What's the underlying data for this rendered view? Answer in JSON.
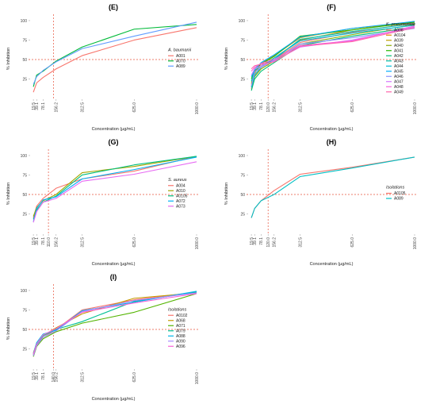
{
  "chart_data": [
    {
      "type": "line",
      "title": "(E)",
      "xlabel": "Concentration (µg/mL)",
      "ylabel": "% Inhibition",
      "legend_title": "A. baumanii",
      "legend": "right",
      "x": [
        19.5,
        39.1,
        78.1,
        156.2,
        312.5,
        625,
        1000
      ],
      "xlim": [
        0,
        1000
      ],
      "ylim": [
        0,
        102
      ],
      "xticks": [
        19.5,
        39.1,
        78.1,
        156.2,
        312.5,
        {
          "value": 625,
          "label": "625.0"
        },
        {
          "value": 1000,
          "label": "1000.0"
        }
      ],
      "yticks": [
        25,
        50,
        75,
        100
      ],
      "vline": 140,
      "hline": 50,
      "series": [
        {
          "name": "A001",
          "color": "#F8766D",
          "values": [
            8,
            20,
            27,
            38,
            55,
            75,
            91
          ]
        },
        {
          "name": "A070",
          "color": "#00BA38",
          "values": [
            15,
            30,
            35,
            48,
            66,
            89,
            95
          ]
        },
        {
          "name": "A089",
          "color": "#619CFF",
          "values": [
            18,
            28,
            36,
            47,
            64,
            80,
            98
          ]
        }
      ]
    },
    {
      "type": "line",
      "title": "(F)",
      "xlabel": "Concentration (µg/mL)",
      "ylabel": "% Inhibition",
      "legend_title": "K. pneumoniae",
      "legend": "right",
      "x": [
        19.5,
        39.1,
        78.1,
        156.2,
        312.5,
        625,
        1000
      ],
      "xlim": [
        0,
        1000
      ],
      "ylim": [
        0,
        102
      ],
      "xticks": [
        19.5,
        39.1,
        78.1,
        {
          "value": 120,
          "label": "120.0"
        },
        156.2,
        312.5,
        {
          "value": 625,
          "label": "625.0"
        },
        {
          "value": 1000,
          "label": "1000.0"
        }
      ],
      "yticks": [
        25,
        50,
        75,
        100
      ],
      "vline": 120,
      "hline": 50,
      "series": [
        {
          "name": "A008",
          "color": "#F8766D",
          "values": [
            12,
            30,
            40,
            50,
            72,
            85,
            97
          ]
        },
        {
          "name": "A0104",
          "color": "#E18A00",
          "values": [
            18,
            35,
            42,
            52,
            75,
            88,
            99
          ]
        },
        {
          "name": "A039",
          "color": "#BE9C00",
          "values": [
            20,
            32,
            45,
            55,
            78,
            90,
            98
          ]
        },
        {
          "name": "A040",
          "color": "#8CAB00",
          "values": [
            15,
            28,
            38,
            48,
            70,
            82,
            95
          ]
        },
        {
          "name": "A041",
          "color": "#24B700",
          "values": [
            25,
            38,
            44,
            54,
            80,
            88,
            98
          ]
        },
        {
          "name": "A042",
          "color": "#00BE70",
          "values": [
            10,
            25,
            35,
            46,
            68,
            80,
            92
          ]
        },
        {
          "name": "A043",
          "color": "#00C1AB",
          "values": [
            22,
            36,
            42,
            50,
            76,
            86,
            96
          ]
        },
        {
          "name": "A044",
          "color": "#00BBDA",
          "values": [
            14,
            30,
            40,
            52,
            74,
            84,
            94
          ]
        },
        {
          "name": "A045",
          "color": "#00ACFC",
          "values": [
            28,
            37,
            46,
            56,
            79,
            90,
            99
          ]
        },
        {
          "name": "A046",
          "color": "#8B93FF",
          "values": [
            16,
            34,
            40,
            49,
            70,
            78,
            90
          ]
        },
        {
          "name": "A047",
          "color": "#D575FE",
          "values": [
            30,
            38,
            42,
            48,
            66,
            75,
            92
          ]
        },
        {
          "name": "A048",
          "color": "#F962DD",
          "values": [
            35,
            40,
            45,
            50,
            68,
            74,
            93
          ]
        },
        {
          "name": "A049",
          "color": "#FF65AC",
          "values": [
            38,
            42,
            44,
            47,
            67,
            73,
            91
          ]
        }
      ]
    },
    {
      "type": "line",
      "title": "(G)",
      "xlabel": "Concentration (µg/mL)",
      "ylabel": "% Inhibition",
      "legend_title": "S. aureus",
      "legend": "right",
      "x": [
        19.5,
        39.1,
        78.1,
        156.2,
        312.5,
        625,
        1000
      ],
      "xlim": [
        0,
        1000
      ],
      "ylim": [
        0,
        102
      ],
      "xticks": [
        19.5,
        39.1,
        78.1,
        {
          "value": 110,
          "label": "110.0"
        },
        156.2,
        312.5,
        {
          "value": 625,
          "label": "625.0"
        },
        {
          "value": 1000,
          "label": "1000.0"
        }
      ],
      "yticks": [
        25,
        50,
        75,
        100
      ],
      "vline": 110,
      "hline": 50,
      "series": [
        {
          "name": "A004",
          "color": "#F8766D",
          "values": [
            20,
            35,
            45,
            58,
            70,
            80,
            99
          ]
        },
        {
          "name": "A010",
          "color": "#A3A500",
          "values": [
            22,
            33,
            42,
            50,
            78,
            86,
            99
          ]
        },
        {
          "name": "A0105",
          "color": "#00BF7D",
          "values": [
            18,
            30,
            40,
            48,
            75,
            88,
            99
          ]
        },
        {
          "name": "A072",
          "color": "#00B0F6",
          "values": [
            15,
            32,
            43,
            47,
            70,
            82,
            98
          ]
        },
        {
          "name": "A073",
          "color": "#E76BF3",
          "values": [
            14,
            28,
            40,
            45,
            67,
            76,
            92
          ]
        }
      ]
    },
    {
      "type": "line",
      "title": "(H)",
      "xlabel": "Concentration (µg/mL)",
      "ylabel": "% Inhibition",
      "legend_title": "Isolations",
      "legend": "right",
      "x": [
        19.5,
        39.1,
        78.1,
        156.2,
        312.5,
        625,
        1000
      ],
      "xlim": [
        0,
        1000
      ],
      "ylim": [
        0,
        102
      ],
      "xticks": [
        19.5,
        39.1,
        78.1,
        {
          "value": 120,
          "label": "120.0"
        },
        156.2,
        312.5,
        {
          "value": 625,
          "label": "625.0"
        },
        {
          "value": 1000,
          "label": "1000.0"
        }
      ],
      "yticks": [
        25,
        50,
        75,
        100
      ],
      "vline": 120,
      "hline": 50,
      "series": [
        {
          "name": "A0105",
          "color": "#F8766D",
          "values": [
            20,
            32,
            42,
            55,
            76,
            85,
            98
          ]
        },
        {
          "name": "A089",
          "color": "#00BFC4",
          "values": [
            20,
            32,
            42,
            50,
            73,
            84,
            98
          ]
        }
      ]
    },
    {
      "type": "line",
      "title": "(I)",
      "xlabel": "Concentration (µg/mL)",
      "ylabel": "% Inhibition",
      "legend_title": "Isolations",
      "legend": "right",
      "x": [
        19.5,
        39.1,
        78.1,
        156.2,
        312.5,
        625,
        1000
      ],
      "xlim": [
        0,
        1000
      ],
      "ylim": [
        0,
        102
      ],
      "xticks": [
        19.5,
        39.1,
        78.1,
        {
          "value": 140,
          "label": "140.0"
        },
        156.2,
        312.5,
        {
          "value": 625,
          "label": "625.0"
        },
        {
          "value": 1000,
          "label": "1000.0"
        }
      ],
      "yticks": [
        25,
        50,
        75,
        100
      ],
      "vline": 140,
      "hline": 50,
      "series": [
        {
          "name": "A0102",
          "color": "#F8766D",
          "values": [
            18,
            30,
            40,
            50,
            75,
            88,
            98
          ]
        },
        {
          "name": "A068",
          "color": "#C49A00",
          "values": [
            20,
            32,
            42,
            52,
            70,
            90,
            97
          ]
        },
        {
          "name": "A071",
          "color": "#53B400",
          "values": [
            15,
            28,
            38,
            47,
            58,
            72,
            96
          ]
        },
        {
          "name": "A079",
          "color": "#00C094",
          "values": [
            17,
            30,
            42,
            50,
            60,
            86,
            98
          ]
        },
        {
          "name": "A088",
          "color": "#00B6EB",
          "values": [
            19,
            33,
            44,
            49,
            74,
            85,
            99
          ]
        },
        {
          "name": "A090",
          "color": "#A58AFF",
          "values": [
            16,
            29,
            40,
            48,
            73,
            87,
            97
          ]
        },
        {
          "name": "A096",
          "color": "#FB61D7",
          "values": [
            18,
            31,
            43,
            51,
            72,
            84,
            96
          ]
        }
      ]
    }
  ]
}
